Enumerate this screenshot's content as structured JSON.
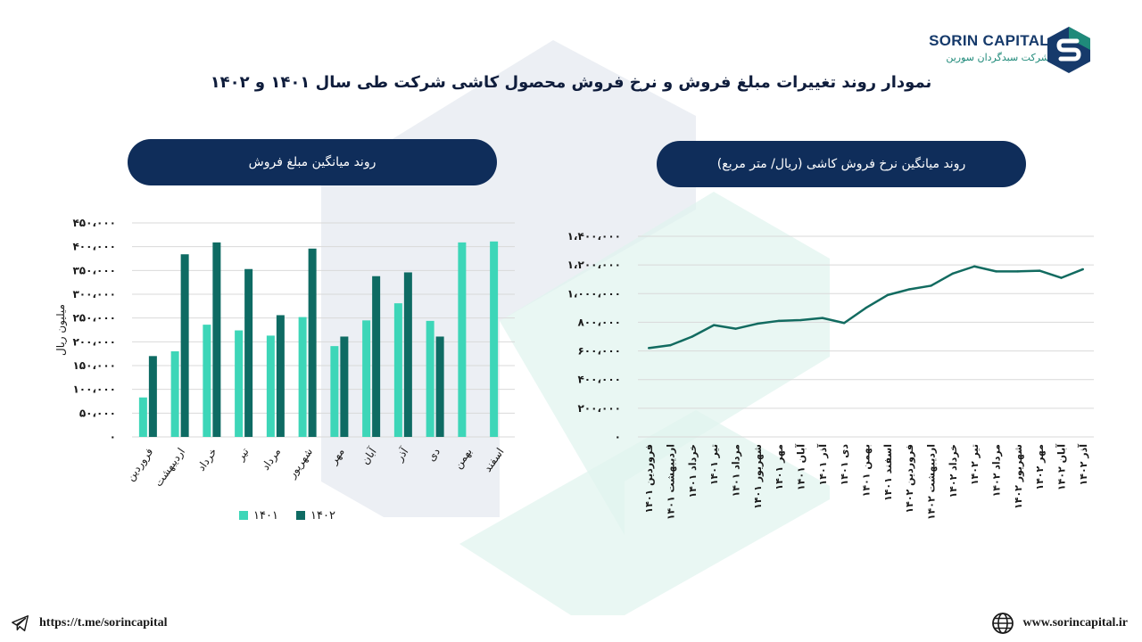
{
  "header": {
    "title": "نمودار روند تغییرات مبلغ فروش و نرخ فروش محصول کاشی شرکت طی سال  ۱۴۰۱ و ۱۴۰۲",
    "logo_name": "SORIN CAPITAL",
    "logo_sub": "شرکت سبدگردان سورین"
  },
  "left_panel": {
    "pill": "روند میانگین مبلغ فروش"
  },
  "right_panel": {
    "pill": "روند میانگین نرخ فروش کاشی (ریال/ متر مربع)"
  },
  "footer": {
    "telegram": "https://t.me/sorincapital",
    "website": "www.sorincapital.ir"
  },
  "colors": {
    "navy": "#0f2d5a",
    "series1401": "#3dd6b8",
    "series1402": "#0e6b63",
    "line": "#126b60"
  },
  "chart_data": [
    {
      "type": "bar",
      "ylabel": "میلیون ریال",
      "ylim": [
        0,
        450000
      ],
      "yticks": [
        "۰",
        "۵۰،۰۰۰",
        "۱۰۰،۰۰۰",
        "۱۵۰،۰۰۰",
        "۲۰۰،۰۰۰",
        "۲۵۰،۰۰۰",
        "۳۰۰،۰۰۰",
        "۳۵۰،۰۰۰",
        "۴۰۰،۰۰۰",
        "۴۵۰،۰۰۰"
      ],
      "categories": [
        "فروردین",
        "اردیبهشت",
        "خرداد",
        "تیر",
        "مرداد",
        "شهریور",
        "مهر",
        "آبان",
        "آذر",
        "دی",
        "بهمن",
        "اسفند"
      ],
      "series": [
        {
          "name": "۱۴۰۱",
          "values": [
            83000,
            180000,
            236000,
            224000,
            213000,
            252000,
            191000,
            245000,
            281000,
            244000,
            409000,
            411000
          ]
        },
        {
          "name": "۱۴۰۲",
          "values": [
            170000,
            384000,
            409000,
            353000,
            256000,
            396000,
            211000,
            338000,
            346000,
            211000,
            null,
            null
          ]
        }
      ],
      "legend_position": "bottom"
    },
    {
      "type": "line",
      "ylim": [
        0,
        1400000
      ],
      "yticks": [
        "۰",
        "۲۰۰،۰۰۰",
        "۴۰۰،۰۰۰",
        "۶۰۰،۰۰۰",
        "۸۰۰،۰۰۰",
        "۱،۰۰۰،۰۰۰",
        "۱،۲۰۰،۰۰۰",
        "۱،۴۰۰،۰۰۰"
      ],
      "categories": [
        "فروردین ۱۴۰۱",
        "اردیبهشت ۱۴۰۱",
        "خرداد ۱۴۰۱",
        "تیر ۱۴۰۱",
        "مرداد ۱۴۰۱",
        "شهریور ۱۴۰۱",
        "مهر ۱۴۰۱",
        "آبان ۱۴۰۱",
        "آذر ۱۴۰۱",
        "دی ۱۴۰۱",
        "بهمن ۱۴۰۱",
        "اسفند ۱۴۰۱",
        "فروردین ۱۴۰۲",
        "اردیبهشت ۱۴۰۲",
        "خرداد ۱۴۰۲",
        "تیر ۱۴۰۲",
        "مرداد ۱۴۰۲",
        "شهریور ۱۴۰۲",
        "مهر ۱۴۰۲",
        "آبان ۱۴۰۲",
        "آذر ۱۴۰۲"
      ],
      "values": [
        620000,
        640000,
        700000,
        780000,
        755000,
        790000,
        810000,
        815000,
        830000,
        795000,
        900000,
        990000,
        1030000,
        1055000,
        1140000,
        1190000,
        1155000,
        1155000,
        1160000,
        1110000,
        1170000
      ]
    }
  ]
}
